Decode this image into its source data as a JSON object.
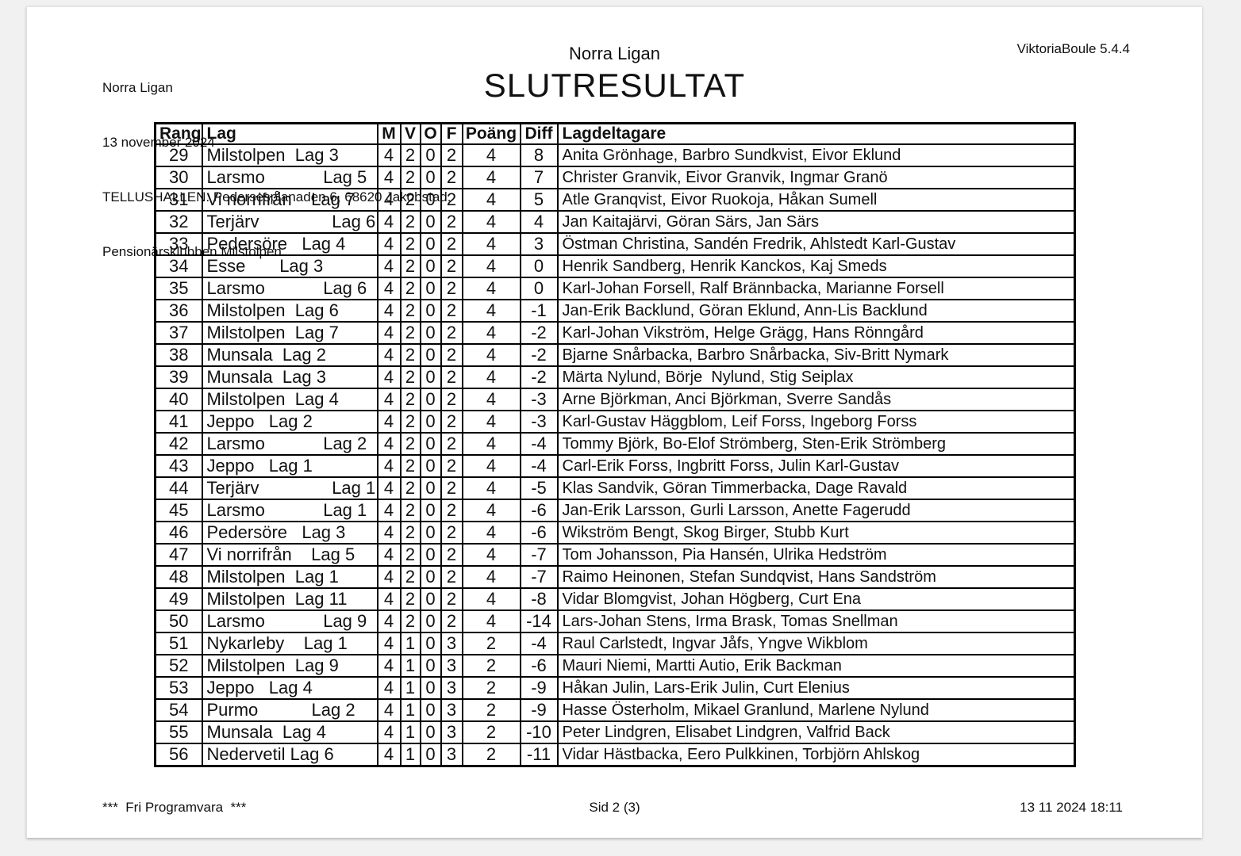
{
  "page": {
    "header": {
      "meta_lines": [
        "Norra Ligan",
        "13 november 2024",
        "TELLUSHALLEN. Pedersesplanaden 6, 68620 Jakobstad.",
        "Pensionärsklubben Milstolpen"
      ],
      "title": "Norra Ligan",
      "subtitle": "SLUTRESULTAT",
      "app_version": "ViktoriaBoule 5.4.4"
    },
    "table": {
      "columns": [
        "Rang",
        "Lag",
        "M",
        "V",
        "O",
        "F",
        "Poäng",
        "Diff",
        "Lagdeltagare"
      ],
      "rows": [
        {
          "rang": "29",
          "lag": "Milstolpen  Lag 3",
          "m": "4",
          "v": "2",
          "o": "0",
          "f": "2",
          "poang": "4",
          "diff": "8",
          "players": "Anita Grönhage, Barbro Sundkvist, Eivor Eklund"
        },
        {
          "rang": "30",
          "lag": "Larsmo            Lag 5",
          "m": "4",
          "v": "2",
          "o": "0",
          "f": "2",
          "poang": "4",
          "diff": "7",
          "players": "Christer Granvik, Eivor Granvik, Ingmar Granö"
        },
        {
          "rang": "31",
          "lag": "Vi norrifrån    Lag 7",
          "m": "4",
          "v": "2",
          "o": "0",
          "f": "2",
          "poang": "4",
          "diff": "5",
          "players": "Atle Granqvist, Eivor Ruokoja, Håkan Sumell"
        },
        {
          "rang": "32",
          "lag": "Terjärv               Lag 6",
          "m": "4",
          "v": "2",
          "o": "0",
          "f": "2",
          "poang": "4",
          "diff": "4",
          "players": "Jan Kaitajärvi, Göran Särs, Jan Särs"
        },
        {
          "rang": "33",
          "lag": "Pedersöre   Lag 4",
          "m": "4",
          "v": "2",
          "o": "0",
          "f": "2",
          "poang": "4",
          "diff": "3",
          "players": "Östman Christina, Sandén Fredrik, Ahlstedt Karl-Gustav"
        },
        {
          "rang": "34",
          "lag": "Esse       Lag 3",
          "m": "4",
          "v": "2",
          "o": "0",
          "f": "2",
          "poang": "4",
          "diff": "0",
          "players": "Henrik Sandberg, Henrik Kanckos, Kaj Smeds"
        },
        {
          "rang": "35",
          "lag": "Larsmo            Lag 6",
          "m": "4",
          "v": "2",
          "o": "0",
          "f": "2",
          "poang": "4",
          "diff": "0",
          "players": "Karl-Johan Forsell, Ralf Brännbacka, Marianne Forsell"
        },
        {
          "rang": "36",
          "lag": "Milstolpen  Lag 6",
          "m": "4",
          "v": "2",
          "o": "0",
          "f": "2",
          "poang": "4",
          "diff": "-1",
          "players": "Jan-Erik Backlund, Göran Eklund, Ann-Lis Backlund"
        },
        {
          "rang": "37",
          "lag": "Milstolpen  Lag 7",
          "m": "4",
          "v": "2",
          "o": "0",
          "f": "2",
          "poang": "4",
          "diff": "-2",
          "players": "Karl-Johan Vikström, Helge Grägg, Hans Rönngård"
        },
        {
          "rang": "38",
          "lag": "Munsala  Lag 2",
          "m": "4",
          "v": "2",
          "o": "0",
          "f": "2",
          "poang": "4",
          "diff": "-2",
          "players": "Bjarne Snårbacka, Barbro Snårbacka, Siv-Britt Nymark"
        },
        {
          "rang": "39",
          "lag": "Munsala  Lag 3",
          "m": "4",
          "v": "2",
          "o": "0",
          "f": "2",
          "poang": "4",
          "diff": "-2",
          "players": "Märta Nylund, Börje  Nylund, Stig Seiplax"
        },
        {
          "rang": "40",
          "lag": "Milstolpen  Lag 4",
          "m": "4",
          "v": "2",
          "o": "0",
          "f": "2",
          "poang": "4",
          "diff": "-3",
          "players": "Arne Björkman, Anci Björkman, Sverre Sandås"
        },
        {
          "rang": "41",
          "lag": "Jeppo   Lag 2",
          "m": "4",
          "v": "2",
          "o": "0",
          "f": "2",
          "poang": "4",
          "diff": "-3",
          "players": "Karl-Gustav Häggblom, Leif Forss, Ingeborg Forss"
        },
        {
          "rang": "42",
          "lag": "Larsmo            Lag 2",
          "m": "4",
          "v": "2",
          "o": "0",
          "f": "2",
          "poang": "4",
          "diff": "-4",
          "players": "Tommy Björk, Bo-Elof Strömberg, Sten-Erik Strömberg"
        },
        {
          "rang": "43",
          "lag": "Jeppo   Lag 1",
          "m": "4",
          "v": "2",
          "o": "0",
          "f": "2",
          "poang": "4",
          "diff": "-4",
          "players": "Carl-Erik Forss, Ingbritt Forss, Julin Karl-Gustav"
        },
        {
          "rang": "44",
          "lag": "Terjärv               Lag 1",
          "m": "4",
          "v": "2",
          "o": "0",
          "f": "2",
          "poang": "4",
          "diff": "-5",
          "players": "Klas Sandvik, Göran Timmerbacka, Dage Ravald"
        },
        {
          "rang": "45",
          "lag": "Larsmo            Lag 1",
          "m": "4",
          "v": "2",
          "o": "0",
          "f": "2",
          "poang": "4",
          "diff": "-6",
          "players": "Jan-Erik Larsson, Gurli Larsson, Anette Fagerudd"
        },
        {
          "rang": "46",
          "lag": "Pedersöre   Lag 3",
          "m": "4",
          "v": "2",
          "o": "0",
          "f": "2",
          "poang": "4",
          "diff": "-6",
          "players": "Wikström Bengt, Skog Birger, Stubb Kurt"
        },
        {
          "rang": "47",
          "lag": "Vi norrifrån    Lag 5",
          "m": "4",
          "v": "2",
          "o": "0",
          "f": "2",
          "poang": "4",
          "diff": "-7",
          "players": "Tom Johansson, Pia Hansén, Ulrika Hedström"
        },
        {
          "rang": "48",
          "lag": "Milstolpen  Lag 1",
          "m": "4",
          "v": "2",
          "o": "0",
          "f": "2",
          "poang": "4",
          "diff": "-7",
          "players": "Raimo Heinonen, Stefan Sundqvist, Hans Sandström"
        },
        {
          "rang": "49",
          "lag": "Milstolpen  Lag 11",
          "m": "4",
          "v": "2",
          "o": "0",
          "f": "2",
          "poang": "4",
          "diff": "-8",
          "players": "Vidar Blomgvist, Johan Högberg, Curt Ena"
        },
        {
          "rang": "50",
          "lag": "Larsmo            Lag 9",
          "m": "4",
          "v": "2",
          "o": "0",
          "f": "2",
          "poang": "4",
          "diff": "-14",
          "players": "Lars-Johan Stens, Irma Brask, Tomas Snellman"
        },
        {
          "rang": "51",
          "lag": "Nykarleby    Lag 1",
          "m": "4",
          "v": "1",
          "o": "0",
          "f": "3",
          "poang": "2",
          "diff": "-4",
          "players": "Raul Carlstedt, Ingvar Jåfs, Yngve Wikblom"
        },
        {
          "rang": "52",
          "lag": "Milstolpen  Lag 9",
          "m": "4",
          "v": "1",
          "o": "0",
          "f": "3",
          "poang": "2",
          "diff": "-6",
          "players": "Mauri Niemi, Martti Autio, Erik Backman"
        },
        {
          "rang": "53",
          "lag": "Jeppo   Lag 4",
          "m": "4",
          "v": "1",
          "o": "0",
          "f": "3",
          "poang": "2",
          "diff": "-9",
          "players": "Håkan Julin, Lars-Erik Julin, Curt Elenius"
        },
        {
          "rang": "54",
          "lag": "Purmo           Lag 2",
          "m": "4",
          "v": "1",
          "o": "0",
          "f": "3",
          "poang": "2",
          "diff": "-9",
          "players": "Hasse Österholm, Mikael Granlund, Marlene Nylund"
        },
        {
          "rang": "55",
          "lag": "Munsala  Lag 4",
          "m": "4",
          "v": "1",
          "o": "0",
          "f": "3",
          "poang": "2",
          "diff": "-10",
          "players": "Peter Lindgren, Elisabet Lindgren, Valfrid Back"
        },
        {
          "rang": "56",
          "lag": "Nedervetil Lag 6",
          "m": "4",
          "v": "1",
          "o": "0",
          "f": "3",
          "poang": "2",
          "diff": "-11",
          "players": "Vidar Hästbacka, Eero Pulkkinen, Torbjörn Ahlskog"
        }
      ]
    },
    "footer": {
      "left": "***  Fri Programvara  ***",
      "center": "Sid 2 (3)",
      "right": "13 11 2024 18:11"
    }
  }
}
